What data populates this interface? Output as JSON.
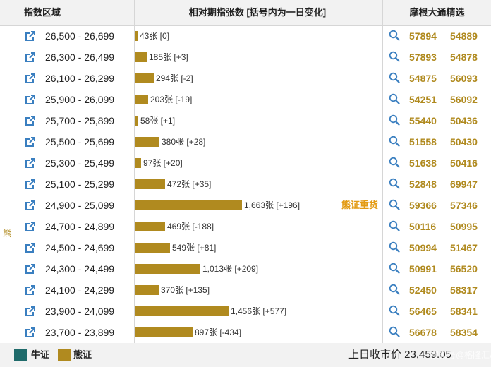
{
  "header": {
    "col_range": "指数区域",
    "col_chart": "相对期指张数 [括号内为一日变化]",
    "col_picks": "摩根大通精选"
  },
  "side_label": "熊",
  "colors": {
    "bear": "#b08a1f",
    "bull": "#1f6b6b",
    "tag": "#e39b14",
    "link": "#3a7fc0"
  },
  "rows": [
    {
      "range": "26,500 - 26,699",
      "value": 43,
      "label": "43张 [0]",
      "code1": "57894",
      "code2": "54889"
    },
    {
      "range": "26,300 - 26,499",
      "value": 185,
      "label": "185张 [+3]",
      "code1": "57893",
      "code2": "54878"
    },
    {
      "range": "26,100 - 26,299",
      "value": 294,
      "label": "294张 [-2]",
      "code1": "54875",
      "code2": "56093"
    },
    {
      "range": "25,900 - 26,099",
      "value": 203,
      "label": "203张 [-19]",
      "code1": "54251",
      "code2": "56092"
    },
    {
      "range": "25,700 - 25,899",
      "value": 58,
      "label": "58张 [+1]",
      "code1": "55440",
      "code2": "50436"
    },
    {
      "range": "25,500 - 25,699",
      "value": 380,
      "label": "380张 [+28]",
      "code1": "51558",
      "code2": "50430"
    },
    {
      "range": "25,300 - 25,499",
      "value": 97,
      "label": "97张 [+20]",
      "code1": "51638",
      "code2": "50416"
    },
    {
      "range": "25,100 - 25,299",
      "value": 472,
      "label": "472张 [+35]",
      "code1": "52848",
      "code2": "69947"
    },
    {
      "range": "24,900 - 25,099",
      "value": 1663,
      "label": "1,663张 [+196]",
      "code1": "59366",
      "code2": "57346",
      "tag": "熊证重货"
    },
    {
      "range": "24,700 - 24,899",
      "value": 469,
      "label": "469张 [-188]",
      "code1": "50116",
      "code2": "50995"
    },
    {
      "range": "24,500 - 24,699",
      "value": 549,
      "label": "549张 [+81]",
      "code1": "50994",
      "code2": "51467"
    },
    {
      "range": "24,300 - 24,499",
      "value": 1013,
      "label": "1,013张 [+209]",
      "code1": "50991",
      "code2": "56520"
    },
    {
      "range": "24,100 - 24,299",
      "value": 370,
      "label": "370张 [+135]",
      "code1": "52450",
      "code2": "58317"
    },
    {
      "range": "23,900 - 24,099",
      "value": 1456,
      "label": "1,456张 [+577]",
      "code1": "56465",
      "code2": "58341"
    },
    {
      "range": "23,700 - 23,899",
      "value": 897,
      "label": "897张 [-434]",
      "code1": "56678",
      "code2": "58354"
    }
  ],
  "footer": {
    "bull_label": "牛证",
    "bear_label": "熊证",
    "prev_close": "上日收市价 23,459.05",
    "watermark": "搜狐号@格隆汇APP"
  }
}
